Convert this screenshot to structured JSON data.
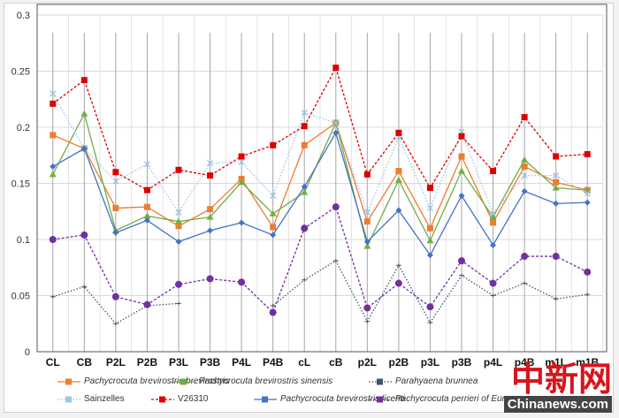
{
  "chart_data": {
    "type": "line",
    "title": "",
    "xlabel": "",
    "ylabel": "",
    "ylim": [
      0,
      0.3
    ],
    "yticks": [
      "0",
      "0.05",
      "0.1",
      "0.15",
      "0.2",
      "0.25",
      "0.3"
    ],
    "grid": true,
    "legend_position": "bottom",
    "categories": [
      "CL",
      "CB",
      "P2L",
      "P2B",
      "P3L",
      "P3B",
      "P4L",
      "P4B",
      "cL",
      "cB",
      "p2L",
      "p2B",
      "p3L",
      "p3B",
      "p4L",
      "p4B",
      "m1L",
      "m1B"
    ],
    "series": [
      {
        "name": "Pachycrocuta brevirostris brevirostris",
        "italic": true,
        "color": "#ed7d31",
        "marker": "square",
        "dash": "solid",
        "values": [
          0.193,
          0.181,
          0.128,
          0.129,
          0.112,
          0.127,
          0.154,
          0.111,
          0.184,
          0.204,
          0.116,
          0.161,
          0.11,
          0.174,
          0.115,
          0.165,
          0.151,
          0.144
        ]
      },
      {
        "name": "Pachycrocuta brevirostris sinensis",
        "italic": true,
        "color": "#70ad47",
        "marker": "triangle",
        "dash": "solid",
        "values": [
          0.158,
          0.212,
          0.108,
          0.121,
          0.116,
          0.12,
          0.151,
          0.123,
          0.142,
          0.204,
          0.094,
          0.153,
          0.099,
          0.161,
          0.12,
          0.171,
          0.146,
          0.144
        ]
      },
      {
        "name": "Parahyaena brunnea",
        "italic": true,
        "color": "#44546a",
        "marker": "plus",
        "dash": "dot",
        "values": [
          0.049,
          0.058,
          0.025,
          0.041,
          0.043,
          null,
          null,
          0.041,
          0.064,
          0.081,
          0.027,
          0.077,
          0.026,
          0.068,
          0.05,
          0.061,
          0.047,
          0.051
        ]
      },
      {
        "name": "Sainzelles",
        "italic": false,
        "color": "#9dc3e6",
        "marker": "x",
        "dash": "dot",
        "values": [
          0.23,
          0.181,
          0.152,
          0.167,
          0.124,
          0.168,
          0.169,
          0.139,
          0.213,
          0.204,
          0.124,
          0.191,
          0.128,
          0.196,
          0.123,
          0.157,
          0.157,
          0.141
        ]
      },
      {
        "name": "V26310",
        "italic": false,
        "color": "#e00000",
        "marker": "square",
        "dash": "dash",
        "values": [
          0.221,
          0.242,
          0.16,
          0.144,
          0.162,
          0.157,
          0.174,
          0.184,
          0.201,
          0.253,
          0.158,
          0.195,
          0.146,
          0.192,
          0.161,
          0.209,
          0.174,
          0.176
        ]
      },
      {
        "name": "Pachycrocuta brevirostris licenti",
        "italic": true,
        "color": "#4472c4",
        "marker": "diamond",
        "dash": "solid",
        "values": [
          0.165,
          0.181,
          0.106,
          0.117,
          0.098,
          0.108,
          0.115,
          0.104,
          0.147,
          0.195,
          0.098,
          0.126,
          0.086,
          0.139,
          0.095,
          0.143,
          0.132,
          0.133
        ]
      },
      {
        "name": "Pachycrocuta perrieri of Europe",
        "italic": true,
        "color": "#7030a0",
        "marker": "circle",
        "dash": "dash",
        "values": [
          0.1,
          0.104,
          0.049,
          0.042,
          0.06,
          0.065,
          0.062,
          0.035,
          0.11,
          0.129,
          0.039,
          0.061,
          0.04,
          0.081,
          0.061,
          0.085,
          0.085,
          0.071
        ]
      }
    ]
  },
  "watermark": {
    "logo": "中新网",
    "site": "Chinanews.com"
  }
}
